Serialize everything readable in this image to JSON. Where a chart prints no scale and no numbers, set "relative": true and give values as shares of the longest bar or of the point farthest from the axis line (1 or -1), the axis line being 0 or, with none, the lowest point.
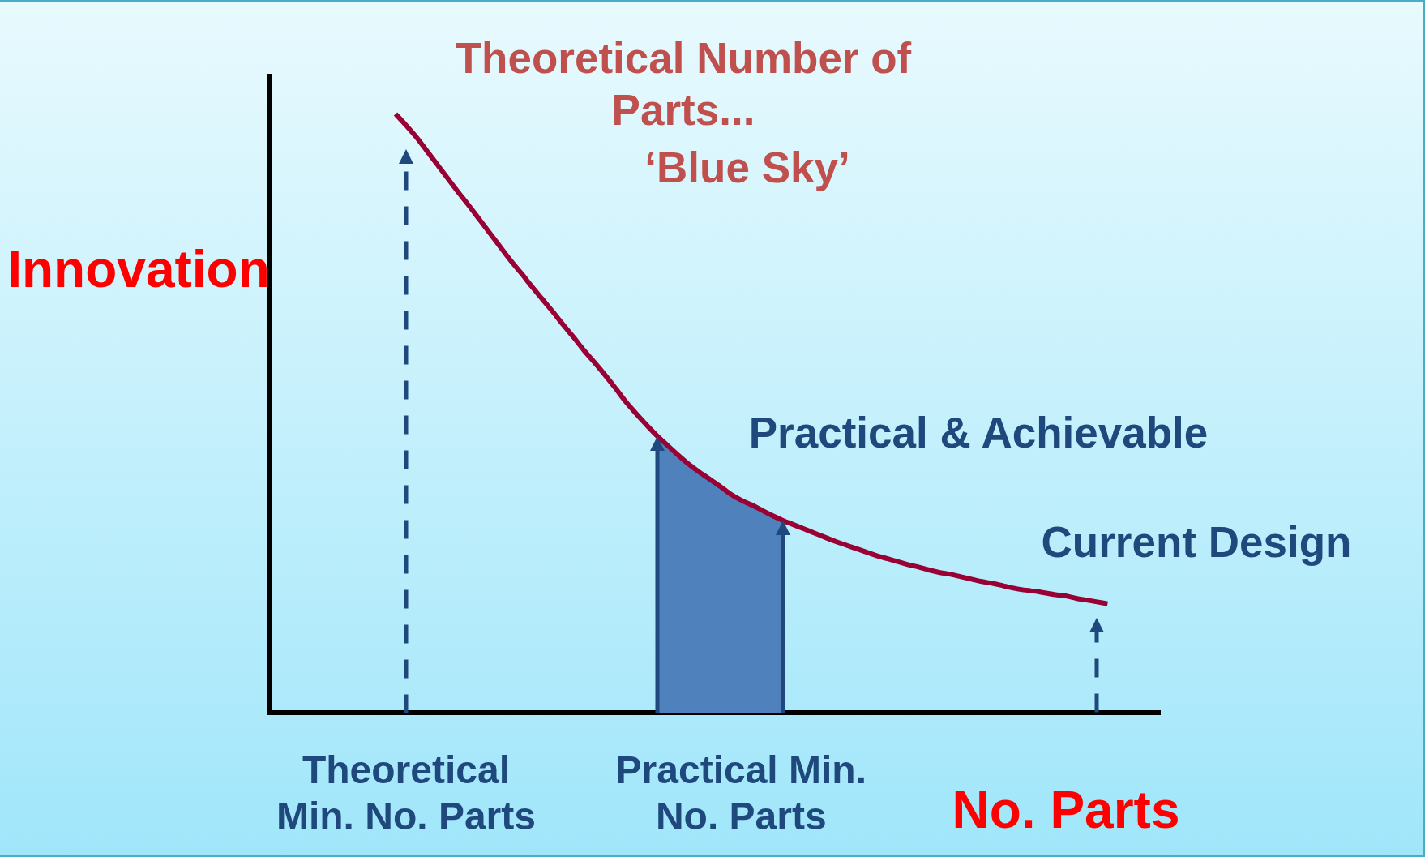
{
  "chart_data": {
    "type": "line",
    "relative": true,
    "xlabel": "No. Parts",
    "ylabel": "Innovation",
    "annotations": [
      "Theoretical Number of Parts...",
      "‘Blue Sky’",
      "Practical & Achievable",
      "Current Design"
    ],
    "categories": [
      null,
      null,
      null,
      null,
      null,
      null,
      null,
      null,
      null,
      null,
      null,
      null,
      null,
      "Theoretical Min. No. Parts",
      null,
      null,
      null,
      null,
      null,
      null,
      null,
      null,
      null,
      null,
      null,
      null,
      null,
      null,
      null,
      null,
      null,
      null,
      null,
      null,
      null,
      null,
      null,
      null,
      null,
      null,
      null,
      null,
      null,
      null,
      null,
      "Practical Min. No. Parts",
      null,
      null,
      null,
      null,
      null,
      null,
      null,
      null,
      null,
      null,
      null,
      null,
      null,
      null,
      null,
      null,
      null,
      null,
      null,
      null,
      null,
      null,
      null,
      null,
      null,
      null,
      null,
      null,
      null,
      null,
      null,
      null,
      null,
      null,
      null,
      null,
      null,
      null,
      null,
      null
    ],
    "series": [
      {
        "type": "line",
        "color": "#990033",
        "values": [
          null,
          null,
          null,
          null,
          null,
          null,
          null,
          null,
          null,
          null,
          null,
          null,
          1,
          0.981,
          0.961,
          0.938,
          0.915,
          0.892,
          0.869,
          0.847,
          0.824,
          0.801,
          0.778,
          0.755,
          0.734,
          0.712,
          0.691,
          0.67,
          0.648,
          0.627,
          0.605,
          0.585,
          0.564,
          0.542,
          0.519,
          0.499,
          0.48,
          0.462,
          0.446,
          0.43,
          0.415,
          0.402,
          0.39,
          0.378,
          0.365,
          0.355,
          0.347,
          0.338,
          0.329,
          0.321,
          0.314,
          0.307,
          0.3,
          0.293,
          0.286,
          0.28,
          0.274,
          0.268,
          0.262,
          0.257,
          0.252,
          0.247,
          0.243,
          0.238,
          0.234,
          0.231,
          0.227,
          0.223,
          0.219,
          0.216,
          0.212,
          0.208,
          0.205,
          0.203,
          0.2,
          0.197,
          0.195,
          0.191,
          0.188,
          0.185,
          0.182,
          null,
          null,
          null,
          null,
          null
        ]
      },
      {
        "type": "area",
        "color": "#4f81bd",
        "values": [
          null,
          null,
          null,
          null,
          null,
          null,
          null,
          null,
          null,
          null,
          null,
          null,
          null,
          null,
          null,
          null,
          null,
          null,
          null,
          null,
          null,
          null,
          null,
          null,
          null,
          null,
          null,
          null,
          null,
          null,
          null,
          null,
          null,
          null,
          null,
          null,
          null,
          0.462,
          0.446,
          0.43,
          0.415,
          0.402,
          0.39,
          0.378,
          0.365,
          0.355,
          0.347,
          0.338,
          0.329,
          0.321,
          null,
          null,
          null,
          null,
          null,
          null,
          null,
          null,
          null,
          null,
          null,
          null,
          null,
          null,
          null,
          null,
          null,
          null,
          null,
          null,
          null,
          null,
          null,
          null,
          null,
          null,
          null,
          null,
          null,
          null,
          null,
          null,
          null,
          null,
          null,
          null
        ]
      }
    ]
  }
}
